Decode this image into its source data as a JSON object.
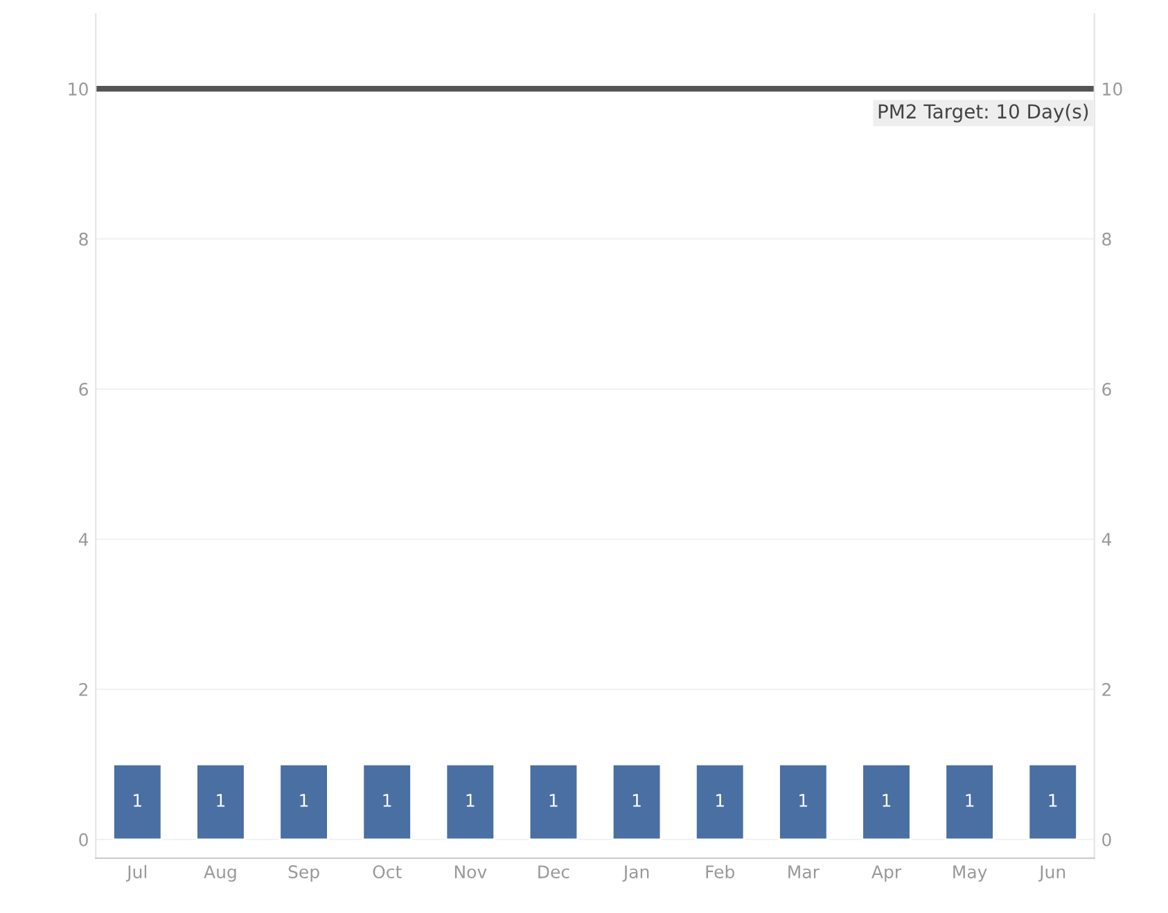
{
  "chart_data": {
    "type": "bar",
    "categories": [
      "Jul",
      "Aug",
      "Sep",
      "Oct",
      "Nov",
      "Dec",
      "Jan",
      "Feb",
      "Mar",
      "Apr",
      "May",
      "Jun"
    ],
    "values": [
      1,
      1,
      1,
      1,
      1,
      1,
      1,
      1,
      1,
      1,
      1,
      1
    ],
    "color": "#4a6fa3",
    "data_labels": true,
    "ylim": [
      -0.25,
      11
    ],
    "yticks": [
      0,
      2,
      4,
      6,
      8,
      10
    ],
    "y2lim": [
      -0.25,
      11
    ],
    "y2ticks": [
      0,
      2,
      4,
      6,
      8,
      10
    ],
    "grid": "y",
    "ref_lines": [
      {
        "axis": "y",
        "value": 10,
        "label": "PM2 Target: 10 Day(s)",
        "color": "#555555",
        "line_style": "solid"
      }
    ]
  }
}
